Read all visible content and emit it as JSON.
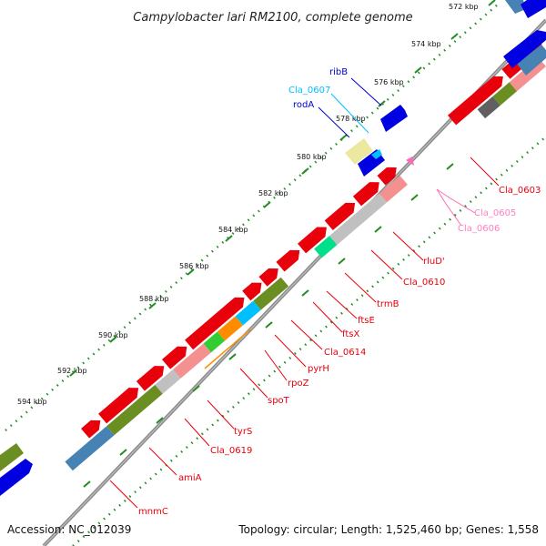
{
  "title": "Campylobacter lari RM2100, complete genome",
  "footer": {
    "accession": "Accession: NC_012039",
    "summary": "Topology: circular; Length: 1,525,460 bp; Genes: 1,558"
  },
  "ticks": [
    "572 kbp",
    "574 kbp",
    "576 kbp",
    "578 kbp",
    "580 kbp",
    "582 kbp",
    "584 kbp",
    "586 kbp",
    "588 kbp",
    "590 kbp",
    "592 kbp",
    "594 kbp"
  ],
  "labels": {
    "ribB": "ribB",
    "cla0607": "Cla_0607",
    "rodA": "rodA",
    "cla0603": "Cla_0603",
    "cla0605": "Cla_0605",
    "cla0606": "Cla_0606",
    "rluD": "rluD'",
    "cla0610": "Cla_0610",
    "trmB": "trmB",
    "ftsE": "ftsE",
    "ftsX": "ftsX",
    "cla0614": "Cla_0614",
    "pyrH": "pyrH",
    "rpoZ": "rpoZ",
    "spoT": "spoT",
    "tyrS": "tyrS",
    "cla0619": "Cla_0619",
    "amiA": "amiA",
    "mnmC": "mnmC"
  },
  "colors": {
    "cds_forward": "#e8000b",
    "cds_reverse": "#0000e0",
    "cog_light_red": "#f59090",
    "cog_green": "#6b8e23",
    "cog_steelblue": "#4682b4",
    "cog_grey": "#c0c0c0",
    "cog_dark_grey": "#606060",
    "cog_cyan": "#00bfff",
    "cog_orange": "#ff8c00",
    "cog_lime": "#32cd32",
    "cog_teal": "#00e08a",
    "cog_khaki": "#ece8a0",
    "rRNA_pink": "#ff69b4",
    "backbone": "#808080",
    "tick": "#228b22"
  }
}
